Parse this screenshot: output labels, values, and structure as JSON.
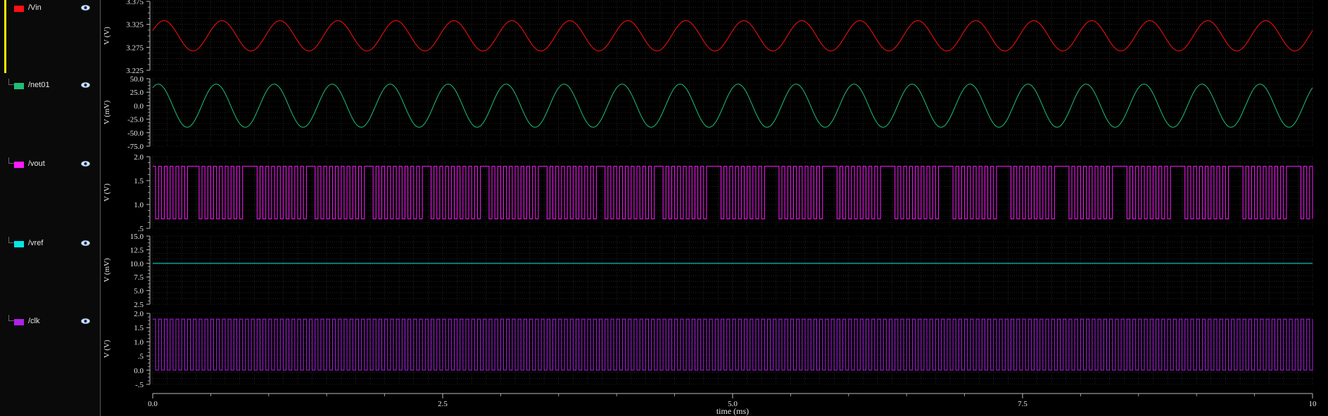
{
  "signals": [
    {
      "name": "/Vin",
      "color": "#ff1010",
      "ylabel": "V (V)",
      "ticks": [
        "3.375",
        "3.325",
        "3.275",
        "3.225"
      ],
      "tickvals": [
        3.375,
        3.325,
        3.275,
        3.225
      ],
      "yrange": [
        3.225,
        3.375
      ],
      "wave": "sine",
      "params": {
        "offset": 3.3,
        "amp": 0.033,
        "period": 0.5,
        "phase": 0.0
      }
    },
    {
      "name": "/net01",
      "color": "#1fbf76",
      "ylabel": "V (mV)",
      "ticks": [
        "50.0",
        "25.0",
        "0.0",
        "-25.0",
        "-50.0",
        "-75.0"
      ],
      "tickvals": [
        50,
        25,
        0,
        -25,
        -50,
        -75
      ],
      "yrange": [
        -75,
        50
      ],
      "wave": "sine",
      "params": {
        "offset": 0,
        "amp": 40,
        "period": 0.5,
        "phase": -0.05
      }
    },
    {
      "name": "/vout",
      "color": "#ff1aff",
      "ylabel": "V (V)",
      "ticks": [
        "2.0",
        "1.5",
        "1.0",
        ".5"
      ],
      "tickvals": [
        2.0,
        1.5,
        1.0,
        0.5
      ],
      "yrange": [
        0.5,
        2.0
      ],
      "wave": "pwm",
      "params": {
        "high": 1.8,
        "low": 0.7,
        "period": 0.5,
        "clk": 0.05
      }
    },
    {
      "name": "/vref",
      "color": "#00e8e8",
      "ylabel": "V (mV)",
      "ticks": [
        "15.0",
        "12.5",
        "10.0",
        "7.5",
        "5.0",
        "2.5"
      ],
      "tickvals": [
        15,
        12.5,
        10,
        7.5,
        5,
        2.5
      ],
      "yrange": [
        2.5,
        15.0
      ],
      "wave": "const",
      "params": {
        "value": 10
      }
    },
    {
      "name": "/clk",
      "color": "#b020e6",
      "ylabel": "V (V)",
      "ticks": [
        "2.0",
        "1.5",
        "1.0",
        ".5",
        "0.0",
        "-.5"
      ],
      "tickvals": [
        2.0,
        1.5,
        1.0,
        0.5,
        0.0,
        -0.5
      ],
      "yrange": [
        -0.5,
        2.0
      ],
      "wave": "square",
      "params": {
        "high": 1.8,
        "low": 0.0,
        "period": 0.05
      }
    }
  ],
  "xaxis": {
    "ticks": [
      "0.0",
      "2.5",
      "5.0",
      "7.5",
      "10"
    ],
    "tickvals": [
      0,
      2.5,
      5,
      7.5,
      10
    ],
    "label": "time (ms)",
    "range": [
      0,
      10
    ]
  },
  "colors": {
    "grid": "#3a3a3a",
    "axis": "#bdbdbd",
    "background": "#000000",
    "sidebar": "#0a0a0a"
  }
}
